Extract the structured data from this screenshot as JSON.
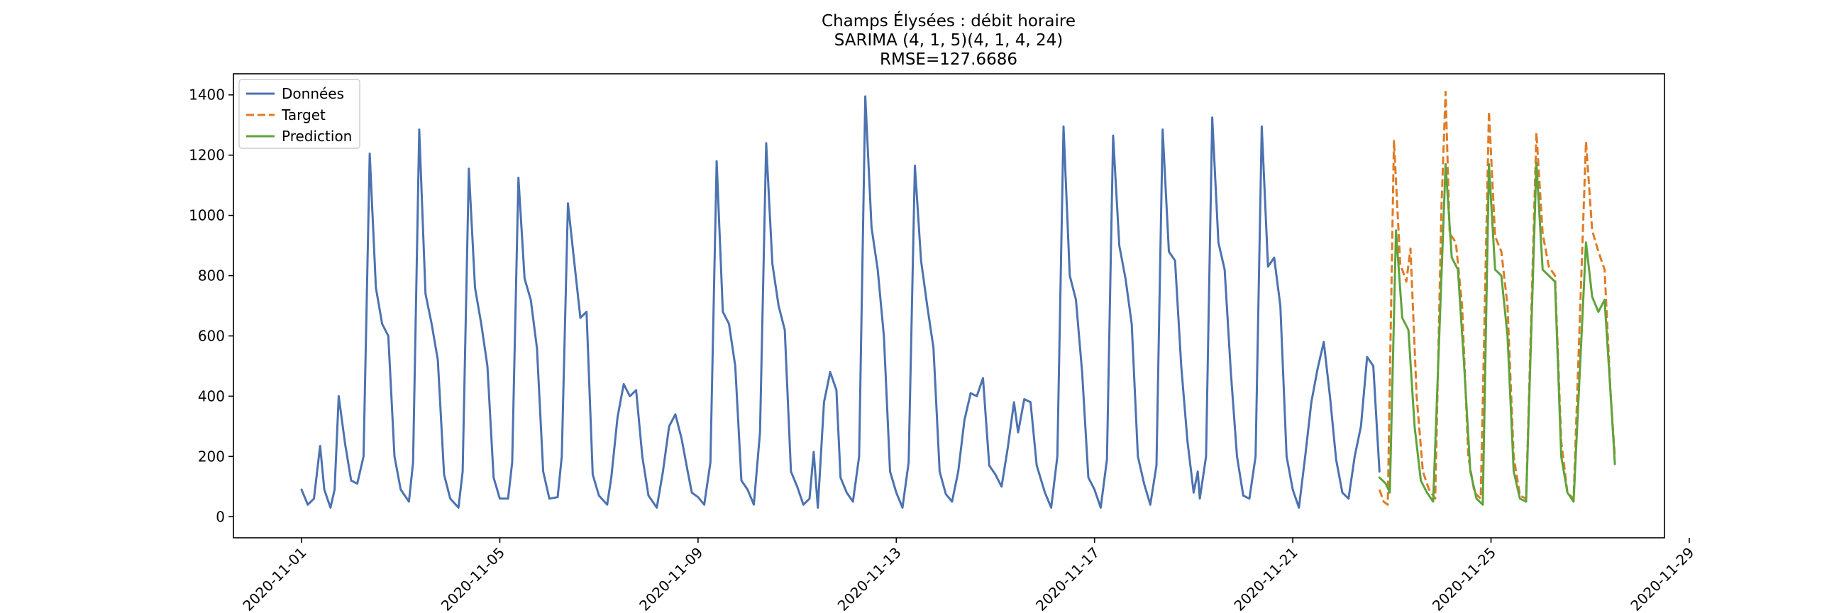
{
  "chart_data": {
    "type": "line",
    "title_lines": [
      "Champs Élysées : débit horaire",
      "SARIMA (4, 1, 5)(4, 1, 4, 24)",
      "RMSE=127.6686"
    ],
    "xlabel": "",
    "ylabel": "",
    "x_ticks": [
      "2020-11-01",
      "2020-11-05",
      "2020-11-09",
      "2020-11-13",
      "2020-11-17",
      "2020-11-21",
      "2020-11-25",
      "2020-11-29"
    ],
    "y_ticks": [
      0,
      200,
      400,
      600,
      800,
      1000,
      1200,
      1400
    ],
    "xlim": [
      "2020-10-30T15:00",
      "2020-11-28T12:00"
    ],
    "ylim": [
      -70,
      1470
    ],
    "grid": false,
    "legend_position": "top-left",
    "series": [
      {
        "name": "Données",
        "color": "#4c72b0",
        "style": "solid",
        "points": [
          [
            "2020-11-01T00:00",
            90
          ],
          [
            "2020-11-01T03:00",
            40
          ],
          [
            "2020-11-01T06:00",
            60
          ],
          [
            "2020-11-01T09:00",
            235
          ],
          [
            "2020-11-01T11:00",
            90
          ],
          [
            "2020-11-01T14:00",
            30
          ],
          [
            "2020-11-01T16:00",
            90
          ],
          [
            "2020-11-01T18:00",
            400
          ],
          [
            "2020-11-01T21:00",
            245
          ],
          [
            "2020-11-02T00:00",
            120
          ],
          [
            "2020-11-02T03:00",
            110
          ],
          [
            "2020-11-02T06:00",
            200
          ],
          [
            "2020-11-02T09:00",
            1205
          ],
          [
            "2020-11-02T12:00",
            760
          ],
          [
            "2020-11-02T15:00",
            640
          ],
          [
            "2020-11-02T18:00",
            600
          ],
          [
            "2020-11-02T21:00",
            200
          ],
          [
            "2020-11-03T00:00",
            90
          ],
          [
            "2020-11-03T04:00",
            50
          ],
          [
            "2020-11-03T06:00",
            180
          ],
          [
            "2020-11-03T09:00",
            1285
          ],
          [
            "2020-11-03T12:00",
            740
          ],
          [
            "2020-11-03T15:00",
            640
          ],
          [
            "2020-11-03T18:00",
            520
          ],
          [
            "2020-11-03T21:00",
            140
          ],
          [
            "2020-11-04T00:00",
            60
          ],
          [
            "2020-11-04T04:00",
            30
          ],
          [
            "2020-11-04T06:00",
            150
          ],
          [
            "2020-11-04T09:00",
            1155
          ],
          [
            "2020-11-04T12:00",
            760
          ],
          [
            "2020-11-04T15:00",
            640
          ],
          [
            "2020-11-04T18:00",
            500
          ],
          [
            "2020-11-04T21:00",
            130
          ],
          [
            "2020-11-05T00:00",
            60
          ],
          [
            "2020-11-05T04:00",
            60
          ],
          [
            "2020-11-05T06:00",
            180
          ],
          [
            "2020-11-05T09:00",
            1125
          ],
          [
            "2020-11-05T12:00",
            790
          ],
          [
            "2020-11-05T15:00",
            720
          ],
          [
            "2020-11-05T18:00",
            560
          ],
          [
            "2020-11-05T21:00",
            150
          ],
          [
            "2020-11-06T00:00",
            60
          ],
          [
            "2020-11-06T04:00",
            65
          ],
          [
            "2020-11-06T06:00",
            200
          ],
          [
            "2020-11-06T09:00",
            1040
          ],
          [
            "2020-11-06T12:00",
            850
          ],
          [
            "2020-11-06T15:00",
            660
          ],
          [
            "2020-11-06T18:00",
            680
          ],
          [
            "2020-11-06T21:00",
            140
          ],
          [
            "2020-11-07T00:00",
            70
          ],
          [
            "2020-11-07T04:00",
            40
          ],
          [
            "2020-11-07T06:00",
            130
          ],
          [
            "2020-11-07T09:00",
            330
          ],
          [
            "2020-11-07T12:00",
            440
          ],
          [
            "2020-11-07T15:00",
            400
          ],
          [
            "2020-11-07T18:00",
            420
          ],
          [
            "2020-11-07T21:00",
            200
          ],
          [
            "2020-11-08T00:00",
            70
          ],
          [
            "2020-11-08T04:00",
            30
          ],
          [
            "2020-11-08T07:00",
            150
          ],
          [
            "2020-11-08T10:00",
            300
          ],
          [
            "2020-11-08T13:00",
            340
          ],
          [
            "2020-11-08T16:00",
            260
          ],
          [
            "2020-11-08T19:00",
            150
          ],
          [
            "2020-11-08T21:00",
            80
          ],
          [
            "2020-11-09T00:00",
            65
          ],
          [
            "2020-11-09T03:00",
            40
          ],
          [
            "2020-11-09T06:00",
            180
          ],
          [
            "2020-11-09T09:00",
            1180
          ],
          [
            "2020-11-09T12:00",
            680
          ],
          [
            "2020-11-09T15:00",
            640
          ],
          [
            "2020-11-09T18:00",
            500
          ],
          [
            "2020-11-09T21:00",
            120
          ],
          [
            "2020-11-10T00:00",
            90
          ],
          [
            "2020-11-10T03:00",
            40
          ],
          [
            "2020-11-10T06:00",
            280
          ],
          [
            "2020-11-10T09:00",
            1240
          ],
          [
            "2020-11-10T12:00",
            840
          ],
          [
            "2020-11-10T15:00",
            700
          ],
          [
            "2020-11-10T18:00",
            620
          ],
          [
            "2020-11-10T21:00",
            150
          ],
          [
            "2020-11-11T00:00",
            100
          ],
          [
            "2020-11-11T03:00",
            40
          ],
          [
            "2020-11-11T06:00",
            60
          ],
          [
            "2020-11-11T08:00",
            215
          ],
          [
            "2020-11-11T10:00",
            30
          ],
          [
            "2020-11-11T13:00",
            380
          ],
          [
            "2020-11-11T16:00",
            480
          ],
          [
            "2020-11-11T19:00",
            420
          ],
          [
            "2020-11-11T21:00",
            130
          ],
          [
            "2020-11-12T00:00",
            80
          ],
          [
            "2020-11-12T03:00",
            50
          ],
          [
            "2020-11-12T06:00",
            200
          ],
          [
            "2020-11-12T09:00",
            1395
          ],
          [
            "2020-11-12T12:00",
            960
          ],
          [
            "2020-11-12T15:00",
            820
          ],
          [
            "2020-11-12T18:00",
            600
          ],
          [
            "2020-11-12T21:00",
            150
          ],
          [
            "2020-11-13T00:00",
            80
          ],
          [
            "2020-11-13T03:00",
            30
          ],
          [
            "2020-11-13T06:00",
            180
          ],
          [
            "2020-11-13T09:00",
            1165
          ],
          [
            "2020-11-13T12:00",
            850
          ],
          [
            "2020-11-13T15:00",
            700
          ],
          [
            "2020-11-13T18:00",
            560
          ],
          [
            "2020-11-13T21:00",
            150
          ],
          [
            "2020-11-14T00:00",
            75
          ],
          [
            "2020-11-14T03:00",
            50
          ],
          [
            "2020-11-14T06:00",
            150
          ],
          [
            "2020-11-14T09:00",
            320
          ],
          [
            "2020-11-14T12:00",
            410
          ],
          [
            "2020-11-14T15:00",
            400
          ],
          [
            "2020-11-14T18:00",
            460
          ],
          [
            "2020-11-14T21:00",
            170
          ],
          [
            "2020-11-15T00:00",
            140
          ],
          [
            "2020-11-15T03:00",
            100
          ],
          [
            "2020-11-15T06:00",
            230
          ],
          [
            "2020-11-15T09:00",
            380
          ],
          [
            "2020-11-15T11:00",
            280
          ],
          [
            "2020-11-15T14:00",
            390
          ],
          [
            "2020-11-15T17:00",
            380
          ],
          [
            "2020-11-15T20:00",
            170
          ],
          [
            "2020-11-16T00:00",
            80
          ],
          [
            "2020-11-16T03:00",
            30
          ],
          [
            "2020-11-16T06:00",
            200
          ],
          [
            "2020-11-16T09:00",
            1295
          ],
          [
            "2020-11-16T12:00",
            800
          ],
          [
            "2020-11-16T15:00",
            720
          ],
          [
            "2020-11-16T18:00",
            480
          ],
          [
            "2020-11-16T21:00",
            130
          ],
          [
            "2020-11-17T00:00",
            90
          ],
          [
            "2020-11-17T03:00",
            30
          ],
          [
            "2020-11-17T06:00",
            190
          ],
          [
            "2020-11-17T09:00",
            1265
          ],
          [
            "2020-11-17T12:00",
            900
          ],
          [
            "2020-11-17T15:00",
            790
          ],
          [
            "2020-11-17T18:00",
            640
          ],
          [
            "2020-11-17T21:00",
            200
          ],
          [
            "2020-11-18T00:00",
            110
          ],
          [
            "2020-11-18T03:00",
            40
          ],
          [
            "2020-11-18T06:00",
            170
          ],
          [
            "2020-11-18T09:00",
            1285
          ],
          [
            "2020-11-18T12:00",
            880
          ],
          [
            "2020-11-18T15:00",
            850
          ],
          [
            "2020-11-18T18:00",
            500
          ],
          [
            "2020-11-18T21:00",
            250
          ],
          [
            "2020-11-19T00:00",
            80
          ],
          [
            "2020-11-19T02:00",
            150
          ],
          [
            "2020-11-19T03:00",
            60
          ],
          [
            "2020-11-19T06:00",
            200
          ],
          [
            "2020-11-19T09:00",
            1325
          ],
          [
            "2020-11-19T12:00",
            910
          ],
          [
            "2020-11-19T15:00",
            820
          ],
          [
            "2020-11-19T18:00",
            480
          ],
          [
            "2020-11-19T21:00",
            200
          ],
          [
            "2020-11-20T00:00",
            70
          ],
          [
            "2020-11-20T03:00",
            60
          ],
          [
            "2020-11-20T06:00",
            200
          ],
          [
            "2020-11-20T09:00",
            1295
          ],
          [
            "2020-11-20T12:00",
            830
          ],
          [
            "2020-11-20T15:00",
            860
          ],
          [
            "2020-11-20T18:00",
            700
          ],
          [
            "2020-11-20T21:00",
            200
          ],
          [
            "2020-11-21T00:00",
            90
          ],
          [
            "2020-11-21T03:00",
            30
          ],
          [
            "2020-11-21T06:00",
            200
          ],
          [
            "2020-11-21T09:00",
            380
          ],
          [
            "2020-11-21T12:00",
            490
          ],
          [
            "2020-11-21T15:00",
            580
          ],
          [
            "2020-11-21T18:00",
            400
          ],
          [
            "2020-11-21T21:00",
            190
          ],
          [
            "2020-11-22T00:00",
            80
          ],
          [
            "2020-11-22T03:00",
            60
          ],
          [
            "2020-11-22T06:00",
            200
          ],
          [
            "2020-11-22T09:00",
            300
          ],
          [
            "2020-11-22T12:00",
            530
          ],
          [
            "2020-11-22T15:00",
            500
          ],
          [
            "2020-11-22T18:00",
            150
          ]
        ]
      },
      {
        "name": "Target",
        "color": "#e07b25",
        "style": "dashed",
        "points": [
          [
            "2020-11-22T18:00",
            90
          ],
          [
            "2020-11-22T20:00",
            50
          ],
          [
            "2020-11-22T22:00",
            40
          ],
          [
            "2020-11-23T01:00",
            1250
          ],
          [
            "2020-11-23T04:00",
            840
          ],
          [
            "2020-11-23T07:00",
            780
          ],
          [
            "2020-11-23T09:00",
            890
          ],
          [
            "2020-11-23T12:00",
            400
          ],
          [
            "2020-11-23T15:00",
            150
          ],
          [
            "2020-11-23T18:00",
            90
          ],
          [
            "2020-11-23T21:00",
            60
          ],
          [
            "2020-11-24T00:00",
            1030
          ],
          [
            "2020-11-24T02:00",
            1410
          ],
          [
            "2020-11-24T04:00",
            940
          ],
          [
            "2020-11-24T07:00",
            910
          ],
          [
            "2020-11-24T10:00",
            700
          ],
          [
            "2020-11-24T13:00",
            200
          ],
          [
            "2020-11-24T16:00",
            80
          ],
          [
            "2020-11-24T19:00",
            60
          ],
          [
            "2020-11-24T23:00",
            1345
          ],
          [
            "2020-11-25T02:00",
            930
          ],
          [
            "2020-11-25T05:00",
            880
          ],
          [
            "2020-11-25T08:00",
            700
          ],
          [
            "2020-11-25T11:00",
            200
          ],
          [
            "2020-11-25T14:00",
            70
          ],
          [
            "2020-11-25T17:00",
            60
          ],
          [
            "2020-11-25T22:00",
            1275
          ],
          [
            "2020-11-26T01:00",
            940
          ],
          [
            "2020-11-26T04:00",
            830
          ],
          [
            "2020-11-26T07:00",
            800
          ],
          [
            "2020-11-26T10:00",
            250
          ],
          [
            "2020-11-26T13:00",
            80
          ],
          [
            "2020-11-26T16:00",
            60
          ],
          [
            "2020-11-26T22:00",
            1245
          ],
          [
            "2020-11-27T01:00",
            950
          ],
          [
            "2020-11-27T04:00",
            880
          ],
          [
            "2020-11-27T07:00",
            820
          ],
          [
            "2020-11-27T10:00",
            400
          ],
          [
            "2020-11-27T12:00",
            200
          ]
        ]
      },
      {
        "name": "Prediction",
        "color": "#5fa33b",
        "style": "solid",
        "points": [
          [
            "2020-11-22T18:00",
            130
          ],
          [
            "2020-11-22T21:00",
            110
          ],
          [
            "2020-11-22T23:00",
            80
          ],
          [
            "2020-11-23T02:00",
            950
          ],
          [
            "2020-11-23T05:00",
            660
          ],
          [
            "2020-11-23T08:00",
            620
          ],
          [
            "2020-11-23T11:00",
            300
          ],
          [
            "2020-11-23T14:00",
            120
          ],
          [
            "2020-11-23T17:00",
            80
          ],
          [
            "2020-11-23T20:00",
            50
          ],
          [
            "2020-11-24T00:00",
            800
          ],
          [
            "2020-11-24T02:00",
            1170
          ],
          [
            "2020-11-24T05:00",
            860
          ],
          [
            "2020-11-24T08:00",
            820
          ],
          [
            "2020-11-24T11:00",
            500
          ],
          [
            "2020-11-24T14:00",
            150
          ],
          [
            "2020-11-24T17:00",
            60
          ],
          [
            "2020-11-24T20:00",
            40
          ],
          [
            "2020-11-24T23:00",
            1170
          ],
          [
            "2020-11-25T02:00",
            820
          ],
          [
            "2020-11-25T05:00",
            800
          ],
          [
            "2020-11-25T08:00",
            600
          ],
          [
            "2020-11-25T11:00",
            150
          ],
          [
            "2020-11-25T14:00",
            60
          ],
          [
            "2020-11-25T17:00",
            50
          ],
          [
            "2020-11-25T22:00",
            1175
          ],
          [
            "2020-11-26T01:00",
            820
          ],
          [
            "2020-11-26T04:00",
            800
          ],
          [
            "2020-11-26T07:00",
            780
          ],
          [
            "2020-11-26T10:00",
            200
          ],
          [
            "2020-11-26T13:00",
            80
          ],
          [
            "2020-11-26T16:00",
            50
          ],
          [
            "2020-11-26T22:00",
            910
          ],
          [
            "2020-11-27T01:00",
            730
          ],
          [
            "2020-11-27T04:00",
            680
          ],
          [
            "2020-11-27T07:00",
            720
          ],
          [
            "2020-11-27T10:00",
            400
          ],
          [
            "2020-11-27T12:00",
            175
          ]
        ]
      }
    ]
  }
}
